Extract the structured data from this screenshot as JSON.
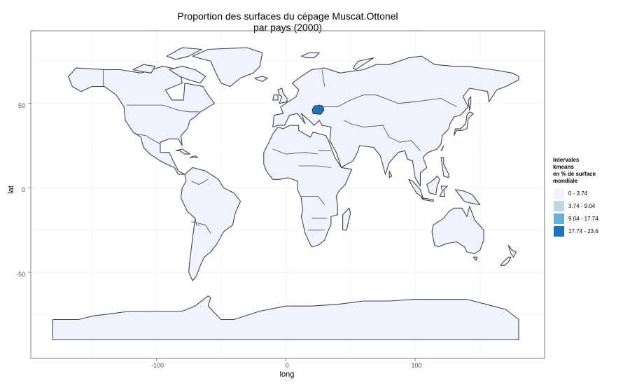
{
  "chart_data": {
    "type": "choropleth",
    "title": "Proportion des surfaces du cépage Muscat.Ottonel",
    "subtitle": "par pays (2000)",
    "xlabel": "long",
    "ylabel": "lat",
    "xlim": [
      -197,
      200
    ],
    "ylim": [
      -101,
      93
    ],
    "x_ticks": [
      -100,
      0,
      100
    ],
    "y_ticks": [
      50,
      0,
      -50
    ],
    "x_tick_labels": [
      "-100",
      "0",
      "100"
    ],
    "y_tick_labels": [
      "50",
      "0",
      "-50"
    ],
    "grid": true,
    "legend_placement": "right",
    "legend": {
      "title": "Intervales\n kmeans\n en % de surface\n mondiale",
      "classes": [
        {
          "label": "0 - 3.74",
          "color": "#eff3ff"
        },
        {
          "label": "3.74 - 9.04",
          "color": "#bdd7e7"
        },
        {
          "label": "9.04 - 17.74",
          "color": "#6baed6"
        },
        {
          "label": "17.74 - 23.6",
          "color": "#2171b5"
        }
      ]
    },
    "highlighted_regions": [
      {
        "name": "Roumanie",
        "class": "17.74 - 23.6",
        "color": "#2171b5",
        "lon": 25,
        "lat": 46
      }
    ],
    "default_fill": "#eff3ff",
    "border_color": "#444444",
    "panel_background": "#ffffff",
    "grid_color": "#ededed"
  }
}
